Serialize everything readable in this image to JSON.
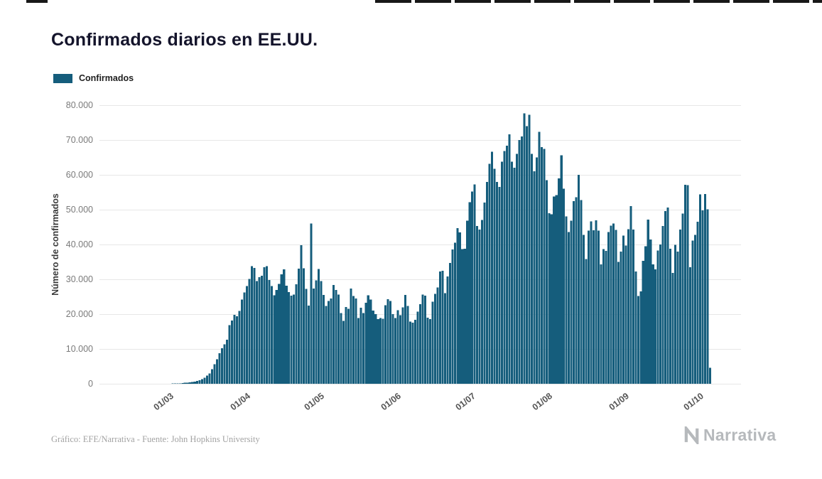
{
  "page": {
    "title": "Confirmados diarios en EE.UU.",
    "footer": "Gráfico: EFE/Narrativa - Fuente: John Hopkins University",
    "brand": "Narrativa"
  },
  "legend": {
    "label": "Confirmados"
  },
  "chart_data": {
    "type": "bar",
    "title": "Confirmados diarios en EE.UU.",
    "series_name": "Confirmados",
    "xlabel": "",
    "ylabel": "Número de confirmados",
    "bar_color": "#155d7c",
    "grid": true,
    "legend_position": "top-left",
    "ylim": [
      0,
      80000
    ],
    "y_ticks": [
      "0",
      "10.000",
      "20.000",
      "30.000",
      "40.000",
      "50.000",
      "60.000",
      "70.000",
      "80.000"
    ],
    "x_domain_days": 259,
    "x_ticks": [
      {
        "label": "01/03",
        "day": 27
      },
      {
        "label": "01/04",
        "day": 58
      },
      {
        "label": "01/05",
        "day": 88
      },
      {
        "label": "01/06",
        "day": 119
      },
      {
        "label": "01/07",
        "day": 149
      },
      {
        "label": "01/08",
        "day": 180
      },
      {
        "label": "01/09",
        "day": 211
      },
      {
        "label": "01/10",
        "day": 241
      }
    ],
    "values": [
      0,
      0,
      0,
      0,
      0,
      0,
      0,
      0,
      0,
      0,
      0,
      0,
      0,
      0,
      0,
      0,
      0,
      0,
      0,
      0,
      1,
      1,
      2,
      3,
      5,
      8,
      12,
      30,
      45,
      60,
      80,
      110,
      150,
      210,
      280,
      350,
      420,
      520,
      650,
      800,
      1000,
      1300,
      1700,
      2300,
      3000,
      4200,
      5600,
      7000,
      8800,
      10200,
      11300,
      12700,
      16800,
      18200,
      19800,
      19400,
      20900,
      24200,
      26200,
      28100,
      30100,
      33800,
      33300,
      29500,
      30600,
      31000,
      33500,
      33800,
      29800,
      28100,
      25400,
      26900,
      28700,
      31400,
      32900,
      28200,
      26300,
      25300,
      25600,
      28600,
      33100,
      39800,
      33200,
      27200,
      22500,
      46000,
      27300,
      29700,
      33000,
      29500,
      25500,
      22300,
      23800,
      24500,
      28400,
      26900,
      25600,
      20300,
      18100,
      22000,
      21500,
      27300,
      25200,
      24500,
      18900,
      21800,
      20300,
      23300,
      25400,
      24200,
      21000,
      20000,
      18600,
      18900,
      18700,
      22600,
      24300,
      23800,
      20000,
      18900,
      21100,
      19700,
      21900,
      25500,
      22300,
      17900,
      17600,
      18400,
      20700,
      22900,
      25600,
      25300,
      19000,
      18600,
      23600,
      25800,
      27700,
      32200,
      32400,
      26000,
      30800,
      34700,
      38600,
      40500,
      44700,
      43500,
      38700,
      38800,
      46800,
      52100,
      55200,
      57200,
      45300,
      44300,
      47000,
      52000,
      58000,
      63200,
      66600,
      61700,
      58000,
      56500,
      63800,
      66800,
      68400,
      71600,
      63800,
      62000,
      66000,
      70000,
      71000,
      77700,
      74000,
      77200,
      66000,
      61000,
      65000,
      72300,
      68000,
      67500,
      58500,
      49000,
      48700,
      53800,
      54200,
      59000,
      65600,
      56000,
      48100,
      43600,
      46800,
      52500,
      53600,
      60000,
      52800,
      42800,
      35800,
      44000,
      46600,
      44100,
      46900,
      44000,
      34300,
      38700,
      38200,
      43600,
      45400,
      46000,
      44200,
      35000,
      38000,
      42600,
      39700,
      44400,
      51000,
      44300,
      32200,
      25200,
      26500,
      35300,
      39500,
      47100,
      41400,
      34300,
      32900,
      38300,
      40000,
      45300,
      49600,
      50600,
      38800,
      31800,
      39900,
      38000,
      44300,
      48900,
      57100,
      57000,
      33500,
      41100,
      42800,
      46500,
      54400,
      49800,
      54500,
      50100,
      4600
    ]
  }
}
